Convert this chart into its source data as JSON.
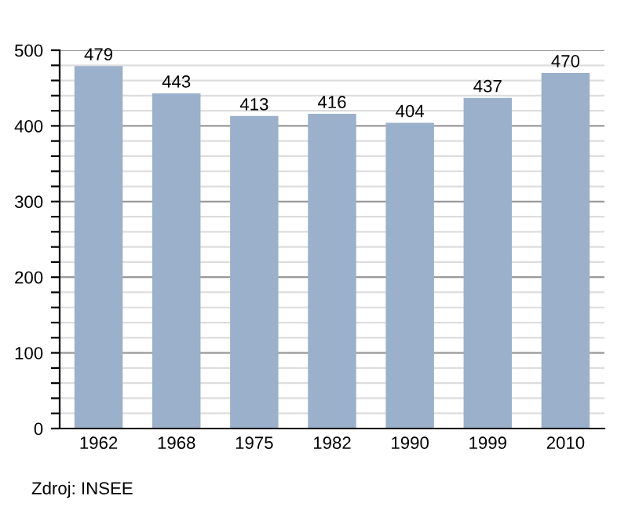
{
  "chart_data": {
    "type": "bar",
    "categories": [
      "1962",
      "1968",
      "1975",
      "1982",
      "1990",
      "1999",
      "2010"
    ],
    "values": [
      479,
      443,
      413,
      416,
      404,
      437,
      470
    ],
    "color": "#9ab0cb",
    "data_labels": true,
    "ylim": [
      0,
      500
    ],
    "yticks": [
      0,
      {
        "value": 20,
        "label": null
      },
      {
        "value": 40,
        "label": null
      },
      {
        "value": 60,
        "label": null
      },
      {
        "value": 80,
        "label": null
      },
      100,
      {
        "value": 120,
        "label": null
      },
      {
        "value": 140,
        "label": null
      },
      {
        "value": 160,
        "label": null
      },
      {
        "value": 180,
        "label": null
      },
      200,
      {
        "value": 220,
        "label": null
      },
      {
        "value": 240,
        "label": null
      },
      {
        "value": 260,
        "label": null
      },
      {
        "value": 280,
        "label": null
      },
      300,
      {
        "value": 320,
        "label": null
      },
      {
        "value": 340,
        "label": null
      },
      {
        "value": 360,
        "label": null
      },
      {
        "value": 380,
        "label": null
      },
      400,
      {
        "value": 420,
        "label": null
      },
      {
        "value": 440,
        "label": null
      },
      {
        "value": 460,
        "label": null
      },
      {
        "value": 480,
        "label": null
      },
      500
    ],
    "grid": "y",
    "annotations": [
      "Zdroj: INSEE"
    ]
  }
}
